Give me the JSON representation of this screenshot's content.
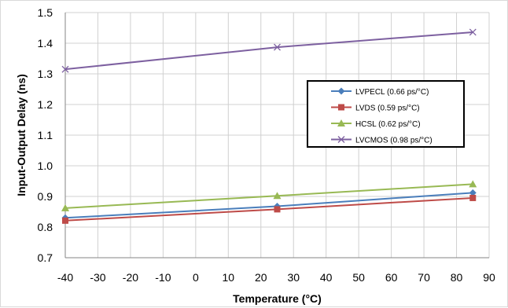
{
  "chart_data": {
    "type": "line",
    "title": "",
    "xlabel": "Temperature (°C)",
    "ylabel": "Input-Output Delay (ns)",
    "xlim": [
      -40,
      90
    ],
    "ylim": [
      0.7,
      1.5
    ],
    "xticks": [
      -40,
      -30,
      -20,
      -10,
      0,
      10,
      20,
      30,
      40,
      50,
      60,
      70,
      80,
      90
    ],
    "yticks": [
      "0.7",
      "0.8",
      "0.9",
      "1.0",
      "1.1",
      "1.2",
      "1.3",
      "1.4",
      "1.5"
    ],
    "grid": true,
    "legend_position": "right",
    "series": [
      {
        "name": "LVPECL (0.66 ps/°C)",
        "color": "#4a7ebb",
        "marker": "diamond",
        "x": [
          -40,
          25,
          85
        ],
        "y": [
          0.83,
          0.868,
          0.912
        ]
      },
      {
        "name": "LVDS (0.59 ps/°C)",
        "color": "#be4b48",
        "marker": "square",
        "x": [
          -40,
          25,
          85
        ],
        "y": [
          0.821,
          0.858,
          0.895
        ]
      },
      {
        "name": "HCSL (0.62 ps/°C)",
        "color": "#98b954",
        "marker": "triangle",
        "x": [
          -40,
          25,
          85
        ],
        "y": [
          0.862,
          0.902,
          0.94
        ]
      },
      {
        "name": "LVCMOS (0.98 ps/°C)",
        "color": "#7d60a0",
        "marker": "x",
        "x": [
          -40,
          25,
          85
        ],
        "y": [
          1.315,
          1.387,
          1.436
        ]
      }
    ]
  }
}
